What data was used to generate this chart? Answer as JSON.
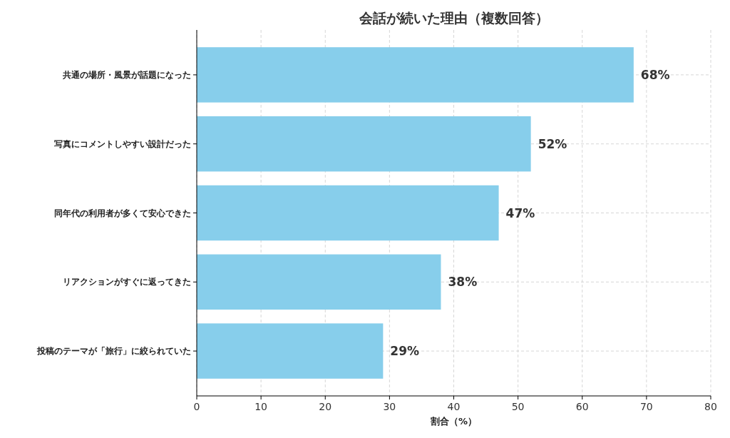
{
  "chart_data": {
    "type": "bar",
    "orientation": "horizontal",
    "title": "会話が続いた理由（複数回答）",
    "xlabel": "割合（%）",
    "categories": [
      "共通の場所・風景が話題になった",
      "写真にコメントしやすい設計だった",
      "同年代の利用者が多くて安心できた",
      "リアクションがすぐに返ってきた",
      "投稿のテーマが「旅行」に絞られていた"
    ],
    "values": [
      68,
      52,
      47,
      38,
      29
    ],
    "value_labels": [
      "68%",
      "52%",
      "47%",
      "38%",
      "29%"
    ],
    "color": "#87ceeb",
    "xlim": [
      0,
      80
    ],
    "xticks": [
      0,
      10,
      20,
      30,
      40,
      50,
      60,
      70,
      80
    ],
    "grid": true
  }
}
